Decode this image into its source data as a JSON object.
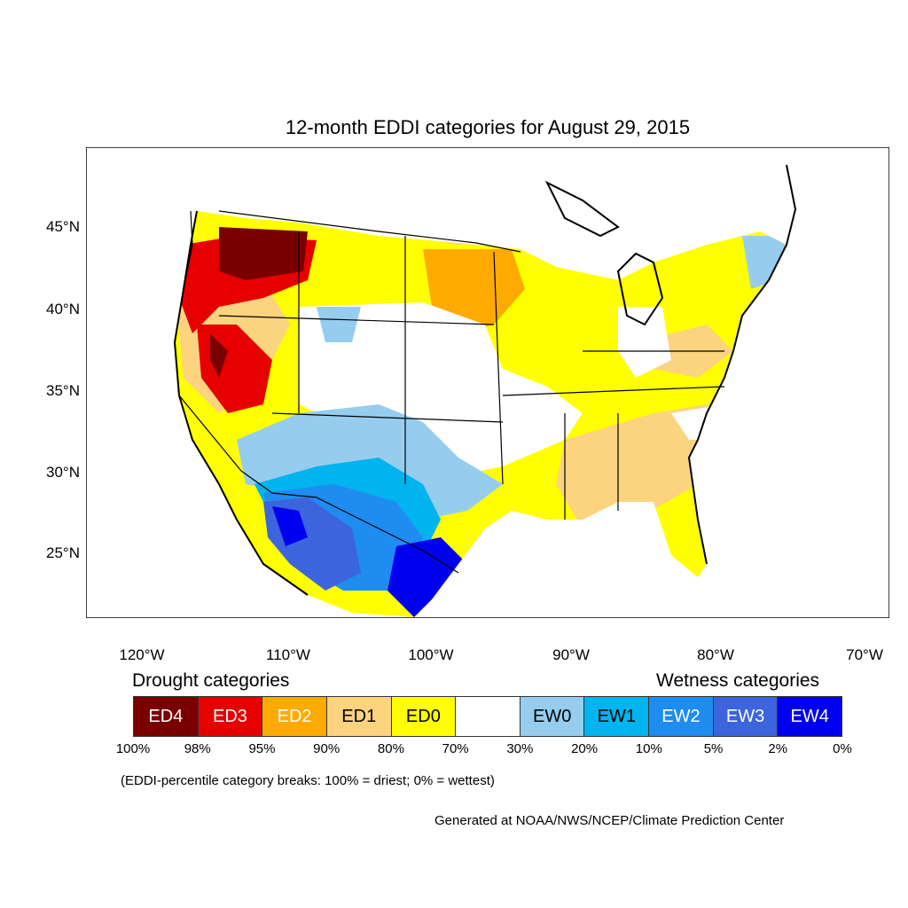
{
  "title": "12-month EDDI categories for August 29, 2015",
  "lat_labels": [
    "45°N",
    "40°N",
    "35°N",
    "30°N",
    "25°N"
  ],
  "lon_labels": [
    "120°W",
    "110°W",
    "100°W",
    "90°W",
    "80°W",
    "70°W"
  ],
  "legend": {
    "drought_heading": "Drought categories",
    "wetness_heading": "Wetness categories",
    "categories": [
      {
        "label": "ED4",
        "color": "#7a0000",
        "text_color": "#ffffff"
      },
      {
        "label": "ED3",
        "color": "#e60000",
        "text_color": "#ffffff"
      },
      {
        "label": "ED2",
        "color": "#ffaa00",
        "text_color": "#ffffff"
      },
      {
        "label": "ED1",
        "color": "#fcd37f",
        "text_color": "#000000"
      },
      {
        "label": "ED0",
        "color": "#ffff00",
        "text_color": "#000000"
      },
      {
        "label": "",
        "color": "#ffffff",
        "text_color": "#000000"
      },
      {
        "label": "EW0",
        "color": "#96cdef",
        "text_color": "#000000"
      },
      {
        "label": "EW1",
        "color": "#00b4f0",
        "text_color": "#000000"
      },
      {
        "label": "EW2",
        "color": "#1e8cf0",
        "text_color": "#ffffff"
      },
      {
        "label": "EW3",
        "color": "#3c64dc",
        "text_color": "#ffffff"
      },
      {
        "label": "EW4",
        "color": "#0000f0",
        "text_color": "#ffffff"
      }
    ],
    "breaks": [
      "100%",
      "98%",
      "95%",
      "90%",
      "80%",
      "70%",
      "30%",
      "20%",
      "10%",
      "5%",
      "2%",
      "0%"
    ]
  },
  "note": "(EDDI-percentile category breaks: 100% = driest; 0% = wettest)",
  "credit": "Generated at NOAA/NWS/NCEP/Climate Prediction Center"
}
